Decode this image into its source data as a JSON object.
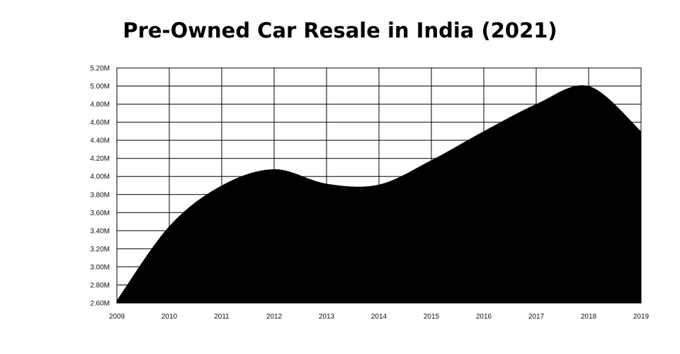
{
  "chart_data": {
    "type": "area",
    "title": "Pre-Owned Car Resale in India (2021)",
    "xlabel": "",
    "ylabel": "",
    "x": [
      "2009",
      "2010",
      "2011",
      "2012",
      "2013",
      "2014",
      "2015",
      "2016",
      "2017",
      "2018",
      "2019"
    ],
    "series": [
      {
        "values": [
          2.63,
          3.45,
          3.9,
          4.08,
          3.92,
          3.91,
          4.18,
          4.5,
          4.8,
          5.0,
          4.5
        ]
      }
    ],
    "ylim": [
      2.6,
      5.2
    ],
    "yticks": [
      "2.60M",
      "2.80M",
      "3.00M",
      "3.20M",
      "3.40M",
      "3.60M",
      "3.80M",
      "4.00M",
      "4.20M",
      "4.40M",
      "4.60M",
      "4.80M",
      "5.00M",
      "5.20M"
    ],
    "grid": true,
    "legend": "none",
    "colors": {
      "fill": "#000000",
      "grid": "#000000"
    }
  }
}
